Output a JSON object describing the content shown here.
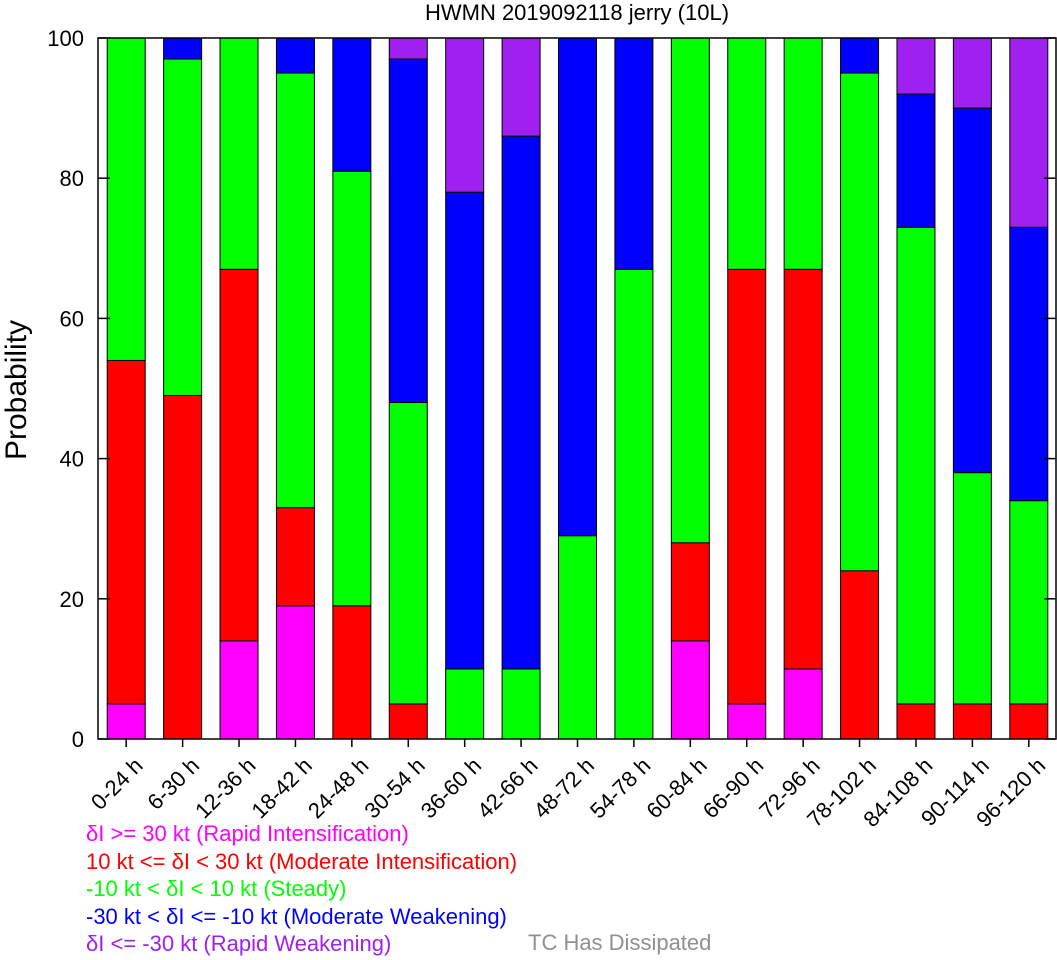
{
  "chart_data": {
    "type": "bar",
    "stacked": true,
    "title": "HWMN 2019092118 jerry (10L)",
    "xlabel": "",
    "ylabel": "Probability",
    "ylim": [
      0,
      100
    ],
    "yticks": [
      0,
      20,
      40,
      60,
      80,
      100
    ],
    "grid": false,
    "categories": [
      "0-24 h",
      "6-30 h",
      "12-36 h",
      "18-42 h",
      "24-48 h",
      "30-54 h",
      "36-60 h",
      "42-66 h",
      "48-72 h",
      "54-78 h",
      "60-84 h",
      "66-90 h",
      "72-96 h",
      "78-102 h",
      "84-108 h",
      "90-114 h",
      "96-120 h"
    ],
    "series": [
      {
        "name": "δI >= 30 kt (Rapid Intensification)",
        "color": "#ff00ff",
        "values": [
          5,
          0,
          14,
          19,
          0,
          0,
          0,
          0,
          0,
          0,
          14,
          5,
          10,
          0,
          0,
          0,
          0
        ]
      },
      {
        "name": "10 kt <= δI < 30 kt (Moderate Intensification)",
        "color": "#ff0000",
        "values": [
          49,
          49,
          53,
          14,
          19,
          5,
          0,
          0,
          0,
          0,
          14,
          62,
          57,
          24,
          5,
          5,
          5
        ]
      },
      {
        "name": "-10 kt < δI < 10 kt (Steady)",
        "color": "#00ff00",
        "values": [
          46,
          48,
          33,
          62,
          62,
          43,
          10,
          10,
          29,
          67,
          72,
          33,
          33,
          71,
          68,
          33,
          29
        ]
      },
      {
        "name": "-30 kt < δI <= -10 kt (Moderate Weakening)",
        "color": "#0000ff",
        "values": [
          0,
          3,
          0,
          5,
          19,
          49,
          68,
          76,
          71,
          33,
          0,
          0,
          0,
          5,
          19,
          52,
          39
        ]
      },
      {
        "name": "δI <= -30 kt (Rapid Weakening)",
        "color": "#a020f0",
        "values": [
          0,
          0,
          0,
          0,
          0,
          3,
          22,
          14,
          0,
          0,
          0,
          0,
          0,
          0,
          8,
          10,
          27
        ]
      }
    ]
  },
  "legend": {
    "dissipated_label": "TC Has Dissipated",
    "dissipated_color": "#909090"
  }
}
